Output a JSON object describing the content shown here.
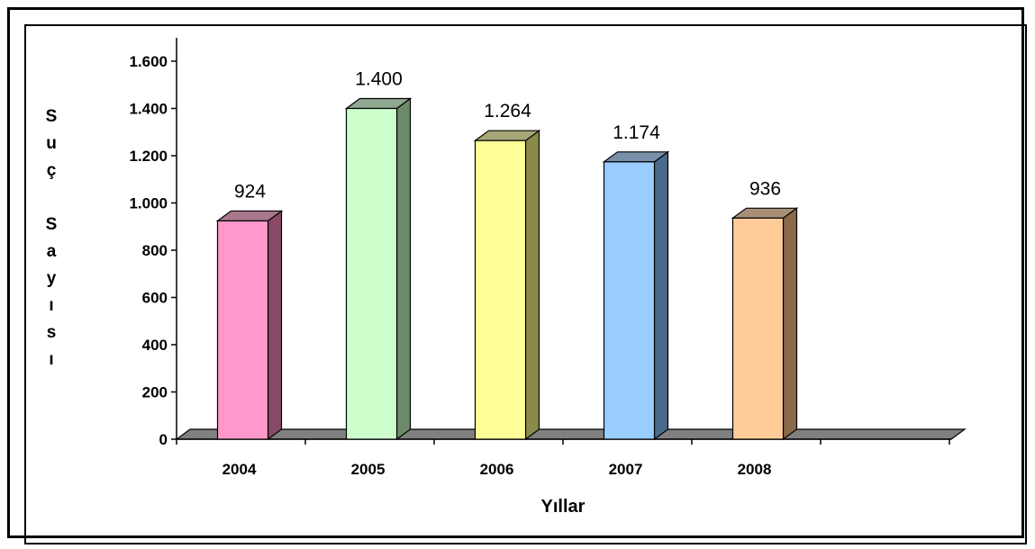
{
  "chart_data": {
    "type": "bar",
    "style": "3d-columns",
    "categories": [
      "2004",
      "2005",
      "2006",
      "2007",
      "2008"
    ],
    "values": [
      924,
      1400,
      1264,
      1174,
      936
    ],
    "data_labels": [
      "924",
      "1.400",
      "1.264",
      "1.174",
      "936"
    ],
    "bar_colors": [
      "#ff99cc",
      "#ccffcc",
      "#ffff99",
      "#99ccff",
      "#ffcc99"
    ],
    "bar_side_colors": [
      "#8a4a66",
      "#6b8a6b",
      "#8a8a4a",
      "#4a6a8a",
      "#8a6a4a"
    ],
    "xlabel": "Yıllar",
    "ylabel": "Suç Sayısı",
    "ylabel_chars": [
      "S",
      "u",
      "ç",
      "",
      "S",
      "a",
      "y",
      "ı",
      "s",
      "ı"
    ],
    "yticks": [
      0,
      200,
      400,
      600,
      800,
      1000,
      1200,
      1400,
      1600
    ],
    "ytick_labels": [
      "0",
      "200",
      "400",
      "600",
      "800",
      "1.000",
      "1.200",
      "1.400",
      "1.600"
    ],
    "ylim": [
      0,
      1600
    ],
    "grid": false,
    "legend": "none",
    "floor_color": "#808080"
  }
}
